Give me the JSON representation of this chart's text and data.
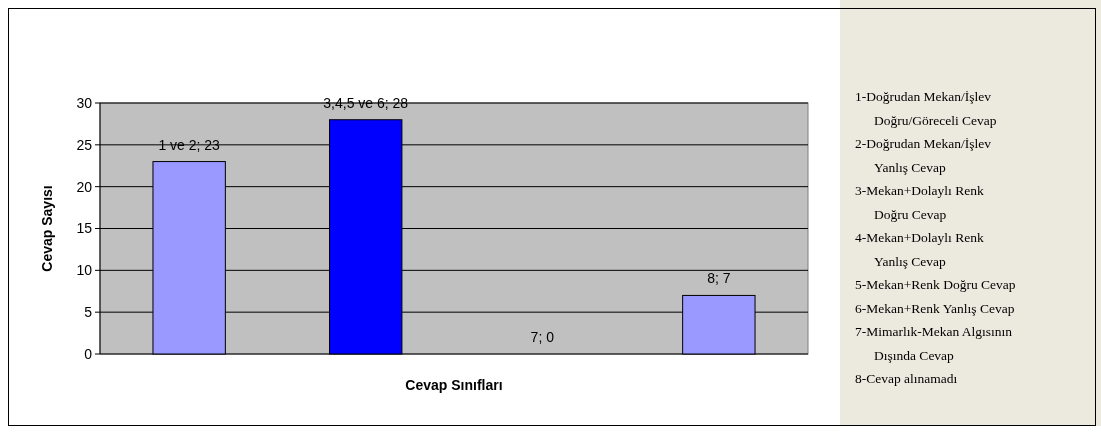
{
  "chart_data": {
    "type": "bar",
    "xlabel": "Cevap Sınıfları",
    "ylabel": "Cevap Sayısı",
    "categories": [
      null,
      null,
      null,
      null
    ],
    "values": [
      23,
      28,
      0,
      7
    ],
    "colors": [
      "#9999ff",
      "#0000ff",
      "#9999ff",
      "#9999ff"
    ],
    "value_labels": [
      "1 ve 2; 23",
      "3,4,5 ve 6; 28",
      "7; 0",
      "8; 7"
    ],
    "ylim": [
      0,
      30
    ],
    "yticks": [
      0,
      5,
      10,
      15,
      20,
      25,
      30
    ],
    "grid": "y",
    "annotations": [
      "1-Doğrudan Mekan/İşlev\nDoğru/Göreceli Cevap",
      "2-Doğrudan Mekan/İşlev\nYanlış Cevap",
      "3-Mekan+Dolaylı Renk\nDoğru Cevap",
      "4-Mekan+Dolaylı Renk\nYanlış Cevap",
      "5-Mekan+Renk Doğru Cevap",
      "6-Mekan+Renk Yanlış Cevap",
      "7-Mimarlık-Mekan Algısının\nDışında Cevap",
      "8-Cevap alınamadı"
    ]
  }
}
